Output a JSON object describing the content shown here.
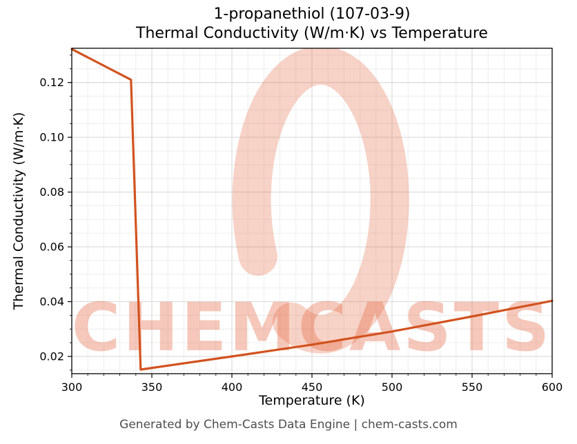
{
  "title": {
    "line1": "1-propanethiol (107-03-9)",
    "line2": "Thermal Conductivity (W/m·K) vs Temperature"
  },
  "footer": {
    "text": "Generated by Chem-Casts Data Engine | chem-casts.com"
  },
  "watermark": {
    "text": "CHEMCASTS",
    "color": "#e66a45"
  },
  "chart_data": {
    "type": "line",
    "title": "1-propanethiol (107-03-9) Thermal Conductivity (W/m·K) vs Temperature",
    "xlabel": "Temperature (K)",
    "ylabel": "Thermal Conductivity (W/m·K)",
    "xlim": [
      300,
      600
    ],
    "ylim": [
      0.0137,
      0.1325
    ],
    "x_ticks": [
      300,
      350,
      400,
      450,
      500,
      550,
      600
    ],
    "y_ticks": [
      0.02,
      0.04,
      0.06,
      0.08,
      0.1,
      0.12
    ],
    "x_minor_step": 10,
    "y_minor_step": 0.005,
    "grid": true,
    "legend": false,
    "line_color": "#d2521e",
    "series": [
      {
        "name": "thermal-conductivity",
        "x": [
          300,
          337,
          343,
          400,
          450,
          500,
          550,
          600
        ],
        "y": [
          0.1322,
          0.121,
          0.0152,
          0.02,
          0.0243,
          0.0291,
          0.0346,
          0.0403
        ]
      }
    ]
  }
}
